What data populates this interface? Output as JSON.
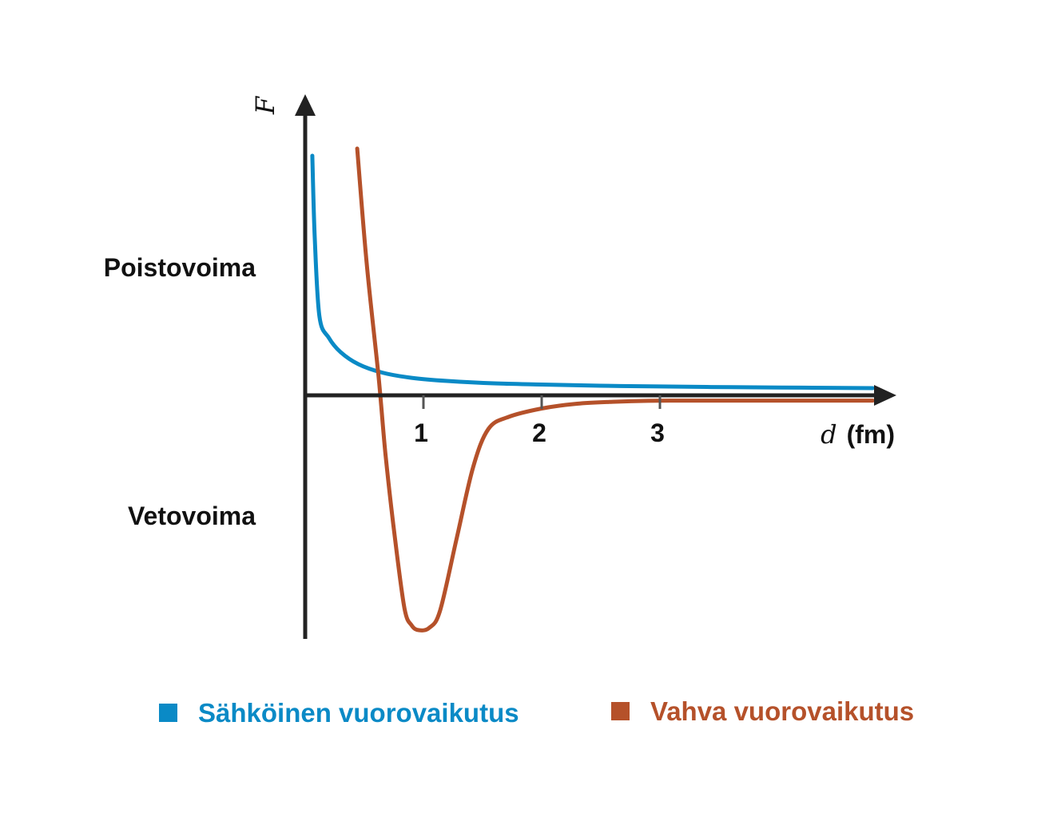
{
  "chart_data": {
    "type": "line",
    "y_axis_label": "F",
    "x_axis_label": {
      "variable": "d",
      "unit": "(fm)"
    },
    "x_ticks": [
      1,
      2,
      3
    ],
    "xlim": [
      0,
      5
    ],
    "region_labels": {
      "upper": "Poistovoima",
      "lower": "Vetovoima"
    },
    "series": [
      {
        "name": "Sähköinen vuorovaikutus",
        "color": "#0a8ac6",
        "x": [
          0.06,
          0.08,
          0.12,
          0.2,
          0.3,
          0.45,
          0.65,
          0.9,
          1.2,
          1.6,
          2.0,
          2.5,
          3.0,
          3.6,
          4.2,
          4.8
        ],
        "y": [
          1.0,
          0.67,
          0.33,
          0.24,
          0.18,
          0.13,
          0.095,
          0.073,
          0.06,
          0.05,
          0.045,
          0.04,
          0.037,
          0.034,
          0.032,
          0.03
        ]
      },
      {
        "name": "Vahva vuorovaikutus",
        "color": "#b5512a",
        "x": [
          0.44,
          0.52,
          0.62,
          0.68,
          0.76,
          0.84,
          0.9,
          0.96,
          1.05,
          1.14,
          1.28,
          1.42,
          1.55,
          1.72,
          2.0,
          2.3,
          2.6,
          2.9,
          3.2,
          3.8,
          4.4,
          4.8
        ],
        "y": [
          1.03,
          0.55,
          0.08,
          -0.25,
          -0.6,
          -0.89,
          -0.96,
          -0.98,
          -0.97,
          -0.9,
          -0.6,
          -0.3,
          -0.14,
          -0.09,
          -0.055,
          -0.035,
          -0.027,
          -0.023,
          -0.022,
          -0.022,
          -0.022,
          -0.022
        ]
      }
    ]
  }
}
